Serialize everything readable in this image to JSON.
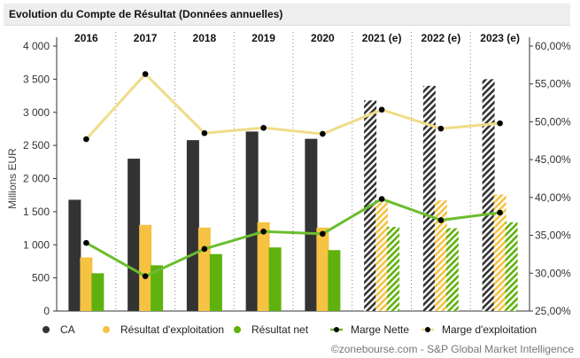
{
  "chart_data": {
    "type": "bar",
    "title": "Evolution du Compte de Résultat (Données annuelles)",
    "ylabel": "Millions EUR",
    "categories": [
      "2016",
      "2017",
      "2018",
      "2019",
      "2020",
      "2021 (e)",
      "2022 (e)",
      "2023 (e)"
    ],
    "estimated_from_index": 5,
    "ylim": [
      0,
      4000
    ],
    "y_ticks": [
      "0",
      "500",
      "1 000",
      "1 500",
      "2 000",
      "2 500",
      "3 000",
      "3 500",
      "4 000"
    ],
    "y2lim": [
      25,
      60
    ],
    "y2_ticks": [
      "25,00%",
      "30,00%",
      "35,00%",
      "40,00%",
      "45,00%",
      "50,00%",
      "55,00%",
      "60,00%"
    ],
    "series": [
      {
        "name": "CA",
        "kind": "bar",
        "color": "#333333",
        "values": [
          1680,
          2300,
          2580,
          2710,
          2600,
          3180,
          3400,
          3500
        ]
      },
      {
        "name": "Résultat d'exploitation",
        "kind": "bar",
        "color": "#f5c242",
        "values": [
          810,
          1300,
          1260,
          1340,
          1260,
          1640,
          1670,
          1760
        ]
      },
      {
        "name": "Résultat net",
        "kind": "bar",
        "color": "#5fb20d",
        "values": [
          570,
          690,
          860,
          960,
          920,
          1270,
          1250,
          1340
        ]
      },
      {
        "name": "Marge Nette",
        "kind": "line",
        "axis": "right",
        "color": "#6bbd2e",
        "values": [
          34.0,
          29.6,
          33.2,
          35.5,
          35.2,
          39.8,
          37.0,
          38.0
        ]
      },
      {
        "name": "Marge d'exploitation",
        "kind": "line",
        "axis": "right",
        "color": "#f0dc8a",
        "values": [
          47.7,
          56.3,
          48.5,
          49.2,
          48.4,
          51.6,
          49.1,
          49.8
        ]
      }
    ],
    "legend_position": "bottom",
    "grid": "vertical dotted",
    "source": "©zonebourse.com - S&P Global Market Intelligence"
  }
}
